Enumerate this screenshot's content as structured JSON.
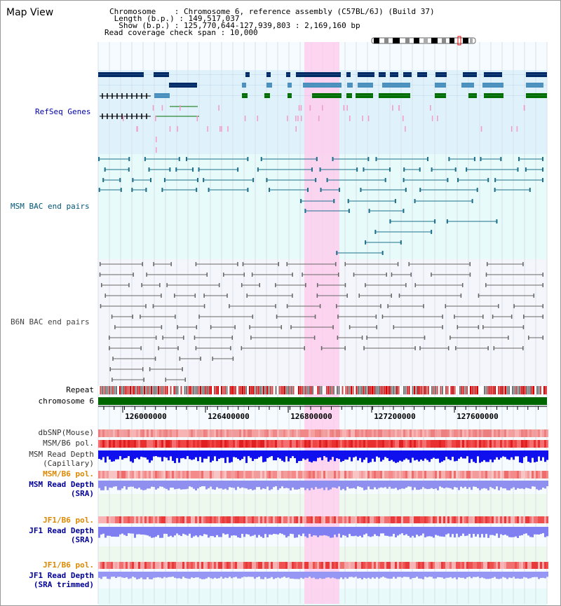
{
  "header": {
    "title": "Map View",
    "chromosome_key": "Chromosome",
    "chromosome_value": "Chromosome 6, reference assembly (C57BL/6J) (Build 37)",
    "length_key": "Length (b.p.)",
    "length_value": "149,517,037",
    "show_key": "Show (b.p.)",
    "show_value": "125,770,644-127,939,803 : 2,169,160 bp",
    "coverage_key": "Read coverage check span",
    "coverage_value": "10,000"
  },
  "tracks": {
    "refseq": "RefSeq Genes",
    "msm_bac": "MSM BAC end pairs",
    "b6n_bac": "B6N BAC end pairs",
    "repeat": "Repeat",
    "chromosome": "chromosome 6",
    "dbsnp": "dbSNP(Mouse)",
    "msm_b6_pol_1": "MSM/B6 pol.",
    "msm_depth_cap_1": "MSM Read Depth",
    "msm_depth_cap_2": "(Capillary)",
    "msm_b6_pol_2": "MSM/B6 pol.",
    "msm_depth_sra_1": "MSM Read Depth",
    "msm_depth_sra_2": "(SRA)",
    "jf1_b6_pol_1": "JF1/B6 pol.",
    "jf1_depth_sra_1": "JF1 Read Depth",
    "jf1_depth_sra_2": "(SRA)",
    "jf1_b6_pol_2": "JF1/B6 pol.",
    "jf1_depth_trim_1": "JF1 Read Depth",
    "jf1_depth_trim_2": "(SRA trimmed)"
  },
  "axis": {
    "ticks": [
      "126000000",
      "126400000",
      "126800000",
      "127200000",
      "127600000"
    ]
  },
  "colors": {
    "refseq_label": "#0000aa",
    "msm_label": "#005577",
    "b6n_label": "#444444",
    "pol_orange": "#dd8800",
    "depth_blue": "#000099",
    "highlight": "#ffccee",
    "chromosome_green": "#006600"
  }
}
